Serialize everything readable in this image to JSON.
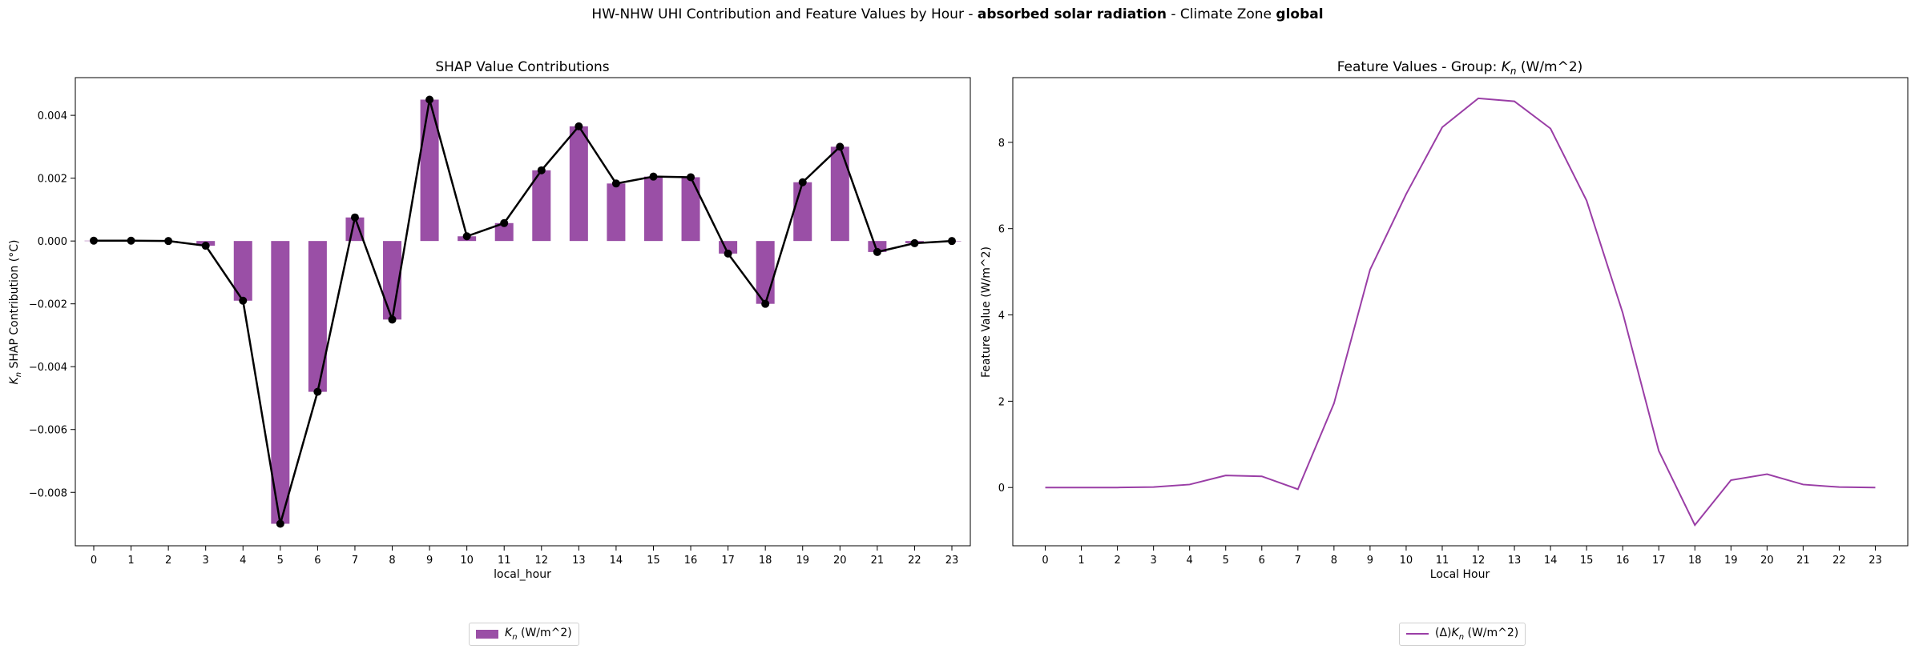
{
  "figure": {
    "suptitle_prefix": "HW-NHW UHI Contribution and Feature Values by Hour - ",
    "suptitle_bold1": "absorbed solar radiation",
    "suptitle_middle": " - Climate Zone ",
    "suptitle_bold2": "global"
  },
  "colors": {
    "bar": "#9a4fa6",
    "marker_line": "#000000",
    "feature_line": "#9a3ea6"
  },
  "chart_data": [
    {
      "type": "bar",
      "title": "SHAP Value Contributions",
      "xlabel": "local_hour",
      "ylabel": "K_n SHAP Contribution (°C)",
      "ylabel_symbol": "K",
      "ylabel_sub": "n",
      "ylabel_rest": " SHAP Contribution (°C)",
      "categories": [
        "0",
        "1",
        "2",
        "3",
        "4",
        "5",
        "6",
        "7",
        "8",
        "9",
        "10",
        "11",
        "12",
        "13",
        "14",
        "15",
        "16",
        "17",
        "18",
        "19",
        "20",
        "21",
        "22",
        "23"
      ],
      "series": [
        {
          "name": "K_n (W/m^2)",
          "values": [
            1e-05,
            1e-05,
            0.0,
            -0.00015,
            -0.0019,
            -0.009,
            -0.0048,
            0.00075,
            -0.0025,
            0.0045,
            0.00015,
            0.00057,
            0.00225,
            0.00365,
            0.00183,
            0.00205,
            0.00203,
            -0.0004,
            -0.002,
            0.00187,
            0.003,
            -0.00035,
            -7e-05,
            0.0
          ]
        }
      ],
      "line_overlay": [
        1e-05,
        1e-05,
        0.0,
        -0.00015,
        -0.0019,
        -0.009,
        -0.0048,
        0.00075,
        -0.0025,
        0.0045,
        0.00015,
        0.00057,
        0.00225,
        0.00365,
        0.00183,
        0.00205,
        0.00203,
        -0.0004,
        -0.002,
        0.00187,
        0.003,
        -0.00035,
        -7e-05,
        0.0
      ],
      "ylim": [
        -0.0097,
        0.0052
      ],
      "yticks": [
        -0.008,
        -0.006,
        -0.004,
        -0.002,
        0.0,
        0.002,
        0.004
      ],
      "ytick_labels": [
        "−0.008",
        "−0.006",
        "−0.004",
        "−0.002",
        "0.000",
        "0.002",
        "0.004"
      ],
      "legend": {
        "symbol": "K",
        "sub": "n",
        "rest": " (W/m^2)",
        "placement": "bottom-center"
      },
      "grid": false
    },
    {
      "type": "line",
      "title_prefix": "Feature Values - Group: ",
      "title_symbol": "K",
      "title_sub": "n",
      "title_rest": " (W/m^2)",
      "xlabel": "Local Hour",
      "ylabel": "Feature Value (W/m^2)",
      "x": [
        0,
        1,
        2,
        3,
        4,
        5,
        6,
        7,
        8,
        9,
        10,
        11,
        12,
        13,
        14,
        15,
        16,
        17,
        18,
        19,
        20,
        21,
        22,
        23
      ],
      "series": [
        {
          "name": "(Δ)K_n (W/m^2)",
          "values": [
            0.0,
            0.0,
            0.0,
            0.01,
            0.07,
            0.28,
            0.26,
            -0.04,
            1.95,
            5.05,
            6.8,
            8.35,
            9.02,
            8.95,
            8.32,
            6.65,
            4.05,
            0.85,
            -0.87,
            0.17,
            0.31,
            0.07,
            0.01,
            0.0
          ]
        }
      ],
      "xlim": [
        -0.9,
        23.9
      ],
      "ylim": [
        -1.35,
        9.5
      ],
      "yticks": [
        0,
        2,
        4,
        6,
        8
      ],
      "ytick_labels": [
        "0",
        "2",
        "4",
        "6",
        "8"
      ],
      "legend": {
        "prefix": "(Δ)",
        "symbol": "K",
        "sub": "n",
        "rest": " (W/m^2)",
        "placement": "bottom-center"
      },
      "grid": false
    }
  ]
}
